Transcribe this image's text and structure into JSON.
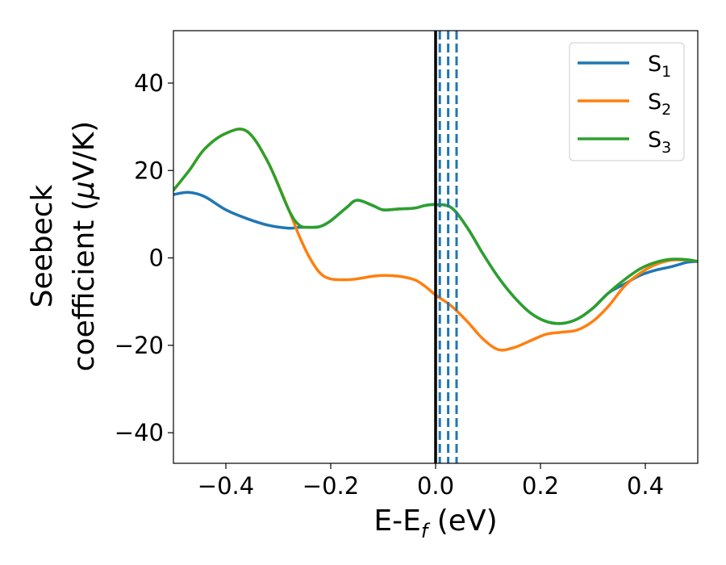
{
  "chart_data": {
    "type": "line",
    "xlabel": {
      "main": "E-E",
      "sub": "f",
      "unit": " (eV)"
    },
    "ylabel": {
      "line1": "Seebeck",
      "line2": "coefficient  (",
      "mu": "μ",
      "unit": "V/K)"
    },
    "xlim": [
      -0.5,
      0.5
    ],
    "ylim": [
      -47,
      52
    ],
    "xticks": [
      -0.4,
      -0.2,
      0.0,
      0.2,
      0.4
    ],
    "xtick_labels": [
      "−0.4",
      "−0.2",
      "0.0",
      "0.2",
      "0.4"
    ],
    "yticks": [
      -40,
      -20,
      0,
      20,
      40
    ],
    "ytick_labels": [
      "−40",
      "−20",
      "0",
      "20",
      "40"
    ],
    "legend_position": "upper-right",
    "vertical_lines": [
      {
        "x": 0.0,
        "color": "#000000",
        "style": "solid"
      },
      {
        "x": 0.008,
        "color": "#1f77b4",
        "style": "dashed"
      },
      {
        "x": 0.024,
        "color": "#1f77b4",
        "style": "dashed"
      },
      {
        "x": 0.04,
        "color": "#1f77b4",
        "style": "dashed"
      }
    ],
    "series": [
      {
        "name": "S",
        "sub": "1",
        "color": "#1f77b4",
        "x": [
          -0.5,
          -0.47,
          -0.44,
          -0.4,
          -0.36,
          -0.32,
          -0.28,
          -0.26,
          -0.24,
          -0.22,
          -0.2,
          -0.17,
          -0.15,
          -0.12,
          -0.1,
          -0.07,
          -0.04,
          -0.02,
          0.0,
          0.03,
          0.06,
          0.09,
          0.12,
          0.15,
          0.18,
          0.21,
          0.24,
          0.27,
          0.3,
          0.33,
          0.36,
          0.39,
          0.42,
          0.45,
          0.48,
          0.5
        ],
        "y": [
          14.5,
          15.0,
          14.0,
          11.0,
          9.0,
          7.5,
          6.8,
          7.0,
          7.0,
          7.2,
          8.5,
          11.5,
          13.2,
          12.0,
          11.0,
          11.2,
          11.4,
          12.0,
          12.2,
          11.5,
          7.0,
          1.0,
          -4.5,
          -9.0,
          -12.5,
          -14.5,
          -15.0,
          -14.0,
          -11.5,
          -8.0,
          -6.0,
          -4.0,
          -2.8,
          -2.0,
          -1.0,
          -0.8
        ]
      },
      {
        "name": "S",
        "sub": "2",
        "color": "#ff7f0e",
        "x": [
          -0.5,
          -0.47,
          -0.44,
          -0.4,
          -0.36,
          -0.32,
          -0.28,
          -0.26,
          -0.24,
          -0.22,
          -0.2,
          -0.17,
          -0.15,
          -0.12,
          -0.1,
          -0.07,
          -0.04,
          -0.02,
          0.0,
          0.03,
          0.06,
          0.09,
          0.12,
          0.15,
          0.18,
          0.21,
          0.24,
          0.27,
          0.3,
          0.33,
          0.36,
          0.39,
          0.42,
          0.45,
          0.48,
          0.5
        ],
        "y": [
          15.5,
          20.0,
          25.0,
          28.5,
          29.0,
          22.0,
          11.0,
          5.0,
          0.0,
          -3.5,
          -4.8,
          -5.0,
          -4.8,
          -4.2,
          -4.0,
          -4.2,
          -5.0,
          -6.5,
          -8.5,
          -11.0,
          -14.5,
          -18.5,
          -21.0,
          -20.5,
          -19.0,
          -17.5,
          -17.0,
          -16.5,
          -14.5,
          -11.0,
          -6.5,
          -3.5,
          -1.5,
          -0.5,
          -0.5,
          -0.8
        ]
      },
      {
        "name": "S",
        "sub": "3",
        "color": "#2ca02c",
        "x": [
          -0.5,
          -0.47,
          -0.44,
          -0.4,
          -0.36,
          -0.32,
          -0.28,
          -0.26,
          -0.24,
          -0.22,
          -0.2,
          -0.17,
          -0.15,
          -0.12,
          -0.1,
          -0.07,
          -0.04,
          -0.02,
          0.0,
          0.03,
          0.06,
          0.09,
          0.12,
          0.15,
          0.18,
          0.21,
          0.24,
          0.27,
          0.3,
          0.33,
          0.36,
          0.39,
          0.42,
          0.45,
          0.48,
          0.5
        ],
        "y": [
          15.5,
          20.0,
          25.0,
          28.5,
          29.0,
          22.0,
          11.0,
          7.5,
          7.0,
          7.2,
          8.5,
          11.5,
          13.2,
          12.0,
          11.0,
          11.2,
          11.4,
          12.0,
          12.2,
          11.5,
          7.0,
          1.0,
          -4.5,
          -9.0,
          -12.5,
          -14.5,
          -15.0,
          -14.0,
          -11.5,
          -8.0,
          -5.0,
          -2.5,
          -1.0,
          -0.3,
          -0.4,
          -0.8
        ]
      }
    ]
  }
}
